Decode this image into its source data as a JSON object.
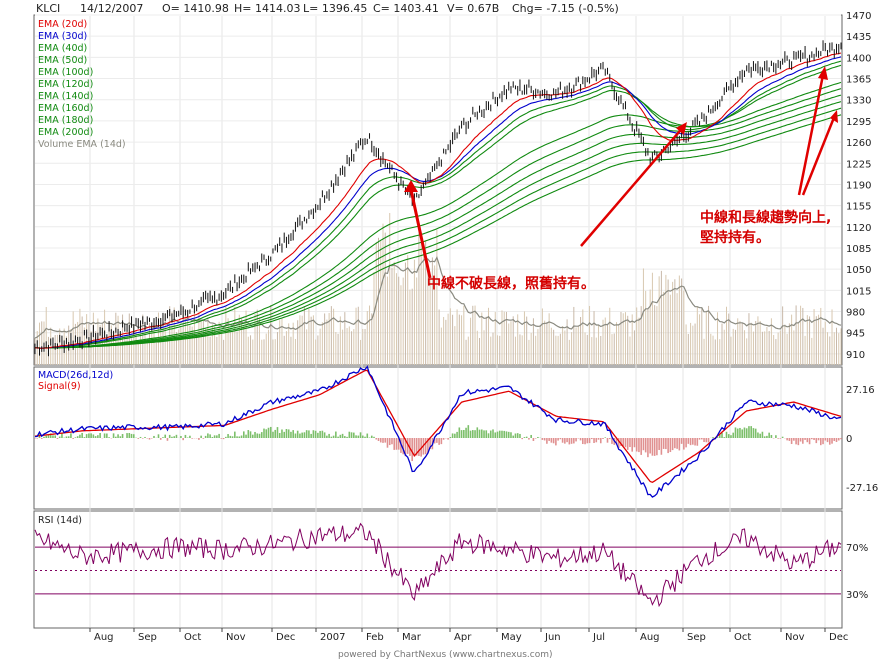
{
  "header": {
    "symbol": "KLCI",
    "date": "14/12/2007",
    "open": "O= 1410.98",
    "high": "H= 1414.03",
    "low": "L= 1396.45",
    "close": "C= 1403.41",
    "volume": "V= 0.67B",
    "change": "Chg= -7.15 (-0.5%)"
  },
  "price_legend": [
    {
      "label": "EMA (20d)",
      "color": "#e00000"
    },
    {
      "label": "EMA (30d)",
      "color": "#0000cc"
    },
    {
      "label": "EMA (40d)",
      "color": "#108a10"
    },
    {
      "label": "EMA (50d)",
      "color": "#108a10"
    },
    {
      "label": "EMA (100d)",
      "color": "#108a10"
    },
    {
      "label": "EMA (120d)",
      "color": "#108a10"
    },
    {
      "label": "EMA (140d)",
      "color": "#108a10"
    },
    {
      "label": "EMA (160d)",
      "color": "#108a10"
    },
    {
      "label": "EMA (180d)",
      "color": "#108a10"
    },
    {
      "label": "EMA (200d)",
      "color": "#108a10"
    },
    {
      "label": "Volume EMA (14d)",
      "color": "#8a8a80"
    }
  ],
  "price_axis": [
    "1470",
    "1435",
    "1400",
    "1365",
    "1330",
    "1295",
    "1260",
    "1225",
    "1190",
    "1155",
    "1120",
    "1085",
    "1050",
    "1015",
    "980",
    "945",
    "910"
  ],
  "macd_legend": [
    {
      "label": "MACD(26d,12d)",
      "color": "#0000cc"
    },
    {
      "label": "Signal(9)",
      "color": "#e00000"
    }
  ],
  "macd_axis": [
    "27.16",
    "0",
    "-27.16"
  ],
  "rsi_legend": {
    "label": "RSI (14d)",
    "color": "#222222"
  },
  "rsi_axis": [
    "70%",
    "30%"
  ],
  "x_labels": [
    "Aug",
    "Sep",
    "Oct",
    "Nov",
    "Dec",
    "2007",
    "Feb",
    "Mar",
    "Apr",
    "May",
    "Jun",
    "Jul",
    "Aug",
    "Sep",
    "Oct",
    "Nov",
    "Dec"
  ],
  "annotations": {
    "a1": "中線不破長線，照舊持有。",
    "a2_line1": "中線和長線趨勢向上,",
    "a2_line2": "堅持持有。"
  },
  "footer": "powered by ChartNexus (www.chartnexus.com)",
  "chart_data": [
    {
      "type": "line",
      "title": "KLCI",
      "x": [
        "Jul-2006",
        "Aug-2006",
        "Sep-2006",
        "Oct-2006",
        "Nov-2006",
        "Dec-2006",
        "Jan-2007",
        "Feb-2007",
        "Mar-2007",
        "Apr-2007",
        "May-2007",
        "Jun-2007",
        "Jul-2007",
        "Aug-2007",
        "Sep-2007",
        "Oct-2007",
        "Nov-2007",
        "Dec-2007"
      ],
      "series": [
        {
          "name": "KLCI",
          "values": [
            920,
            935,
            955,
            975,
            1010,
            1075,
            1160,
            1270,
            1160,
            1285,
            1350,
            1340,
            1380,
            1230,
            1290,
            1380,
            1395,
            1420
          ]
        },
        {
          "name": "EMA (20d)",
          "values": [
            920,
            930,
            948,
            968,
            1000,
            1058,
            1140,
            1235,
            1195,
            1260,
            1340,
            1345,
            1370,
            1300,
            1295,
            1360,
            1385,
            1405
          ]
        },
        {
          "name": "EMA (200d)",
          "values": [
            922,
            925,
            930,
            938,
            950,
            968,
            995,
            1040,
            1080,
            1120,
            1170,
            1210,
            1235,
            1250,
            1260,
            1275,
            1290,
            1310
          ]
        }
      ],
      "ylim": [
        890,
        1475
      ]
    },
    {
      "type": "bar",
      "title": "MACD(26d,12d)",
      "series": [
        {
          "name": "MACD(26d,12d)",
          "values": [
            2,
            5,
            6,
            6,
            8,
            20,
            26,
            40,
            -20,
            25,
            28,
            10,
            8,
            -33,
            -10,
            20,
            18,
            10
          ]
        },
        {
          "name": "Signal(9)",
          "values": [
            1,
            4,
            5,
            6,
            7,
            16,
            24,
            38,
            -10,
            20,
            26,
            12,
            9,
            -25,
            -8,
            15,
            20,
            12
          ]
        }
      ],
      "ylim": [
        -40,
        45
      ]
    },
    {
      "type": "line",
      "title": "RSI (14d)",
      "series": [
        {
          "name": "RSI (14d)",
          "values": [
            78,
            62,
            66,
            70,
            68,
            72,
            80,
            82,
            28,
            75,
            68,
            60,
            66,
            22,
            60,
            78,
            55,
            72
          ]
        }
      ],
      "ylim": [
        0,
        100
      ]
    }
  ]
}
